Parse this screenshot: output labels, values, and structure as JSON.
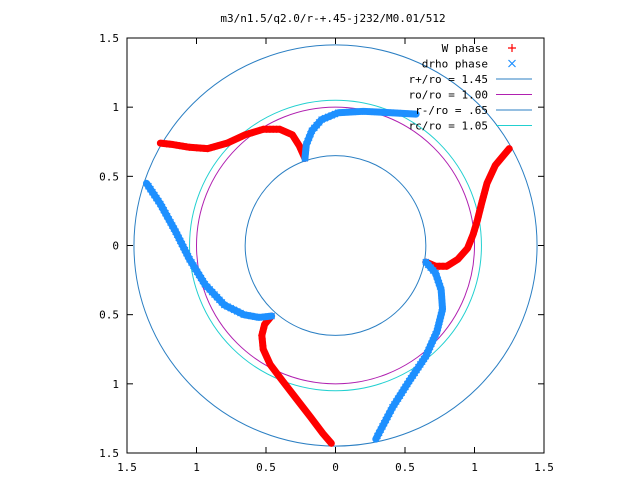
{
  "chart_data": {
    "type": "scatter",
    "title": "m3/n1.5/q2.0/r-+.45-j232/M0.01/512",
    "xlabel": "",
    "ylabel": "",
    "xlim": [
      -1.5,
      1.5
    ],
    "ylim": [
      -1.5,
      1.5
    ],
    "x_ticks": [
      -1.5,
      -1,
      -0.5,
      0,
      0.5,
      1,
      1.5
    ],
    "y_ticks": [
      -1.5,
      -1,
      -0.5,
      0,
      0.5,
      1,
      1.5
    ],
    "x_tick_labels": [
      "1.5",
      "1",
      "0.5",
      "0",
      "0.5",
      "1",
      "1.5"
    ],
    "y_tick_labels": [
      "1.5",
      "1",
      "0.5",
      "0",
      "0.5",
      "1",
      "1.5"
    ],
    "grid": false,
    "legend_position": "top-right",
    "legend": [
      {
        "label": "W phase",
        "marker": "+",
        "color": "#ff0000"
      },
      {
        "label": "drho phase",
        "marker": "x",
        "color": "#1e90ff"
      },
      {
        "label": "r+/ro = 1.45",
        "line": true,
        "color": "#2b7fc3"
      },
      {
        "label": "ro/ro = 1.00",
        "line": true,
        "color": "#b020b0"
      },
      {
        "label": "r-/ro = .65",
        "line": true,
        "color": "#2b7fc3"
      },
      {
        "label": "rc/ro = 1.05",
        "line": true,
        "color": "#22d0d0"
      }
    ],
    "circles": [
      {
        "name": "r+/ro = 1.45",
        "radius": 1.45,
        "color": "#2b7fc3"
      },
      {
        "name": "ro/ro = 1.00",
        "radius": 1.0,
        "color": "#b020b0"
      },
      {
        "name": "r-/ro = .65",
        "radius": 0.65,
        "color": "#2b7fc3"
      },
      {
        "name": "rc/ro = 1.05",
        "radius": 1.05,
        "color": "#22d0d0"
      }
    ],
    "series": [
      {
        "name": "W phase",
        "color": "#ff0000",
        "marker": "+",
        "arms": [
          [
            [
              0.65,
              -0.12
            ],
            [
              0.72,
              -0.15
            ],
            [
              0.8,
              -0.15
            ],
            [
              0.88,
              -0.1
            ],
            [
              0.95,
              -0.02
            ],
            [
              0.99,
              0.08
            ],
            [
              1.02,
              0.18
            ],
            [
              1.05,
              0.3
            ],
            [
              1.09,
              0.45
            ],
            [
              1.15,
              0.58
            ],
            [
              1.25,
              0.7
            ]
          ],
          [
            [
              -0.22,
              0.63
            ],
            [
              -0.26,
              0.72
            ],
            [
              -0.31,
              0.8
            ],
            [
              -0.4,
              0.84
            ],
            [
              -0.52,
              0.84
            ],
            [
              -0.65,
              0.8
            ],
            [
              -0.78,
              0.74
            ],
            [
              -0.92,
              0.7
            ],
            [
              -1.05,
              0.71
            ],
            [
              -1.17,
              0.73
            ],
            [
              -1.26,
              0.74
            ]
          ],
          [
            [
              -0.46,
              -0.51
            ],
            [
              -0.51,
              -0.57
            ],
            [
              -0.53,
              -0.65
            ],
            [
              -0.52,
              -0.75
            ],
            [
              -0.47,
              -0.86
            ],
            [
              -0.38,
              -0.98
            ],
            [
              -0.28,
              -1.11
            ],
            [
              -0.18,
              -1.24
            ],
            [
              -0.09,
              -1.36
            ],
            [
              -0.03,
              -1.43
            ]
          ]
        ]
      },
      {
        "name": "drho phase",
        "color": "#1e90ff",
        "marker": "x",
        "arms": [
          [
            [
              -0.22,
              0.63
            ],
            [
              -0.21,
              0.73
            ],
            [
              -0.17,
              0.83
            ],
            [
              -0.1,
              0.91
            ],
            [
              0.02,
              0.96
            ],
            [
              0.2,
              0.97
            ],
            [
              0.4,
              0.96
            ],
            [
              0.58,
              0.95
            ]
          ],
          [
            [
              -0.46,
              -0.51
            ],
            [
              -0.55,
              -0.52
            ],
            [
              -0.66,
              -0.5
            ],
            [
              -0.8,
              -0.43
            ],
            [
              -0.94,
              -0.28
            ],
            [
              -1.05,
              -0.1
            ],
            [
              -1.15,
              0.1
            ],
            [
              -1.26,
              0.3
            ],
            [
              -1.36,
              0.45
            ]
          ],
          [
            [
              0.65,
              -0.12
            ],
            [
              0.72,
              -0.2
            ],
            [
              0.76,
              -0.32
            ],
            [
              0.77,
              -0.46
            ],
            [
              0.73,
              -0.62
            ],
            [
              0.65,
              -0.8
            ],
            [
              0.53,
              -0.98
            ],
            [
              0.41,
              -1.17
            ],
            [
              0.29,
              -1.4
            ]
          ]
        ]
      }
    ]
  }
}
